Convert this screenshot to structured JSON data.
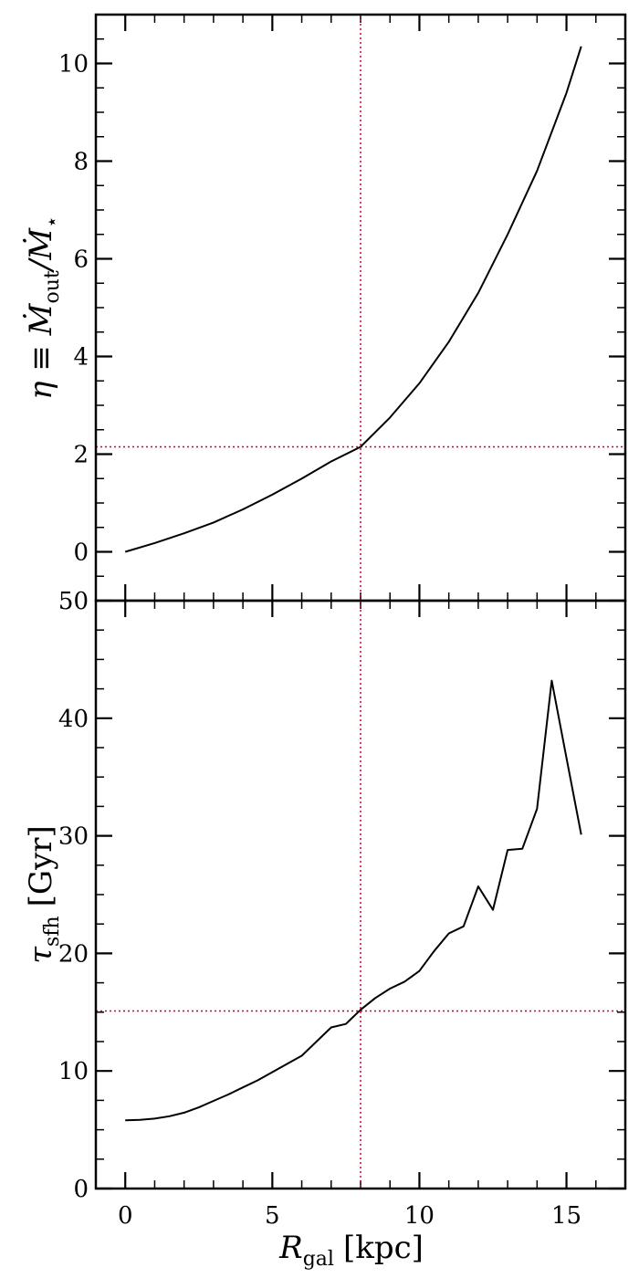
{
  "chart_data": [
    {
      "type": "line",
      "title": "",
      "xlabel": "",
      "ylabel": "η ≡ Ṁ_out/Ṁ_⋆",
      "ylabel_parts": {
        "main": "η ≡ Ṁ",
        "sub1": "out",
        "mid": "/Ṁ",
        "sub2": "⋆"
      },
      "xlim": [
        -1,
        17
      ],
      "ylim": [
        -1,
        11
      ],
      "xticks": [
        0,
        5,
        10,
        15
      ],
      "xtick_labels": [],
      "yticks": [
        0,
        2,
        4,
        6,
        8,
        10
      ],
      "ytick_labels": [
        "0",
        "2",
        "4",
        "6",
        "8",
        "10"
      ],
      "grid": false,
      "series": [
        {
          "color": "#000000",
          "x": [
            0,
            1,
            2,
            3,
            4,
            5,
            6,
            7,
            8,
            9,
            10,
            11,
            12,
            13,
            14,
            15,
            15.5
          ],
          "values": [
            0.0,
            0.18,
            0.38,
            0.6,
            0.87,
            1.17,
            1.5,
            1.85,
            2.15,
            2.75,
            3.45,
            4.3,
            5.3,
            6.5,
            7.8,
            9.4,
            10.35
          ]
        }
      ],
      "reference_lines": [
        {
          "orientation": "vertical",
          "value": 8,
          "color": "#d6002a",
          "style": "dotted"
        },
        {
          "orientation": "horizontal",
          "value": 2.15,
          "color": "#d6002a",
          "style": "dotted"
        }
      ]
    },
    {
      "type": "line",
      "title": "",
      "xlabel": "R_gal [kpc]",
      "xlabel_parts": {
        "main": "R",
        "sub": "gal",
        "unit": "[kpc]"
      },
      "ylabel": "τ_sfh [Gyr]",
      "ylabel_parts": {
        "main": "τ",
        "sub": "sfh",
        "unit": "[Gyr]"
      },
      "xlim": [
        -1,
        17
      ],
      "ylim": [
        0,
        50
      ],
      "xticks": [
        0,
        5,
        10,
        15
      ],
      "xtick_labels": [
        "0",
        "5",
        "10",
        "15"
      ],
      "yticks": [
        0,
        10,
        20,
        30,
        40,
        50
      ],
      "ytick_labels": [
        "0",
        "10",
        "20",
        "30",
        "40",
        "50"
      ],
      "grid": false,
      "series": [
        {
          "color": "#000000",
          "x": [
            0,
            0.5,
            1,
            1.5,
            2,
            2.5,
            3,
            3.5,
            4,
            4.5,
            5,
            5.5,
            6,
            6.5,
            7,
            7.5,
            8,
            8.5,
            9,
            9.5,
            10,
            10.5,
            11,
            11.5,
            12,
            12.5,
            13,
            13.5,
            14,
            14.5,
            15,
            15.5
          ],
          "values": [
            5.8,
            5.85,
            5.95,
            6.15,
            6.45,
            6.9,
            7.45,
            8.0,
            8.6,
            9.2,
            9.9,
            10.6,
            11.3,
            12.5,
            13.7,
            14.0,
            15.2,
            16.2,
            17.0,
            17.6,
            18.5,
            20.2,
            21.7,
            22.3,
            25.7,
            23.7,
            28.8,
            28.9,
            32.3,
            43.2,
            36.6,
            30.1
          ]
        }
      ],
      "reference_lines": [
        {
          "orientation": "vertical",
          "value": 8,
          "color": "#d6002a",
          "style": "dotted"
        },
        {
          "orientation": "horizontal",
          "value": 15.1,
          "color": "#d6002a",
          "style": "dotted"
        }
      ]
    }
  ]
}
